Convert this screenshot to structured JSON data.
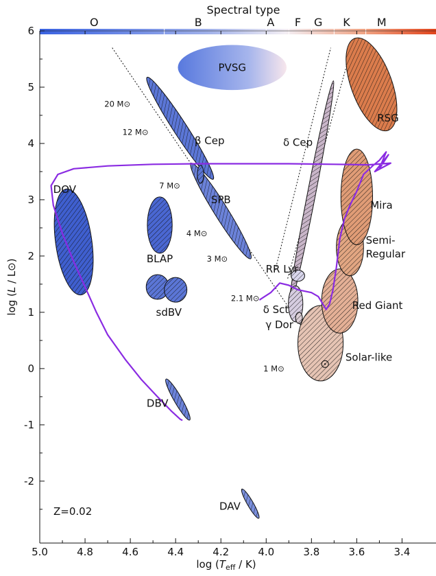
{
  "title": "Spectral type",
  "spectral_types": [
    "O",
    "B",
    "A",
    "F",
    "G",
    "K",
    "M"
  ],
  "axes": {
    "x": {
      "label": "log (T_eff / K)",
      "label_parts": {
        "prefix": "log (",
        "italic": "T",
        "sub": "eff",
        "suffix": " / K)"
      },
      "range": [
        5.0,
        3.25
      ],
      "reversed": true,
      "ticks": [
        5.0,
        4.8,
        4.6,
        4.4,
        4.2,
        4.0,
        3.8,
        3.6,
        3.4
      ],
      "tick_labels": [
        "5.0",
        "4.8",
        "4.6",
        "4.4",
        "4.2",
        "4.0",
        "3.8",
        "3.6",
        "3.4"
      ]
    },
    "y": {
      "label": "log (L / L⊙)",
      "label_parts": {
        "prefix": "log (",
        "italic": "L",
        "suffix": " / L⊙)"
      },
      "range": [
        -3.1,
        6.0
      ],
      "ticks": [
        -2,
        -1,
        0,
        1,
        2,
        3,
        4,
        5,
        6
      ],
      "tick_labels": [
        "-2",
        "-1",
        "0",
        "1",
        "2",
        "3",
        "4",
        "5",
        "6"
      ]
    }
  },
  "metallicity_label": "Z=0.02",
  "regions": [
    {
      "name": "PVSG",
      "label": "PVSG",
      "cx": 4.15,
      "cy": 5.35,
      "rx": 0.24,
      "ry": 0.4,
      "angle": 0,
      "fill": "gradient-blue",
      "hatched": false
    },
    {
      "name": "DOV",
      "label": "DOV",
      "cx": 4.85,
      "cy": 2.25,
      "rx": 0.08,
      "ry": 0.95,
      "angle": -8,
      "fill": "#3f5fcf",
      "hatched": true
    },
    {
      "name": "BLAP",
      "label": "BLAP",
      "cx": 4.47,
      "cy": 2.55,
      "rx": 0.055,
      "ry": 0.5,
      "angle": 0,
      "fill": "#4a67d2",
      "hatched": true
    },
    {
      "name": "sdBV-left",
      "label": "",
      "cx": 4.48,
      "cy": 1.45,
      "rx": 0.05,
      "ry": 0.22,
      "angle": 0,
      "fill": "#5b76d6",
      "hatched": true
    },
    {
      "name": "sdBV-right",
      "label": "",
      "cx": 4.4,
      "cy": 1.4,
      "rx": 0.05,
      "ry": 0.22,
      "angle": 0,
      "fill": "#5b76d6",
      "hatched": true
    },
    {
      "name": "beta-Cep",
      "label": "β Cep",
      "cx": 4.38,
      "cy": 4.27,
      "rx": 0.03,
      "ry": 1.08,
      "angle": -33,
      "fill": "#5b76d6",
      "hatched": true
    },
    {
      "name": "SPB",
      "label": "SPB",
      "cx": 4.2,
      "cy": 2.8,
      "rx": 0.03,
      "ry": 1.0,
      "angle": -32,
      "fill": "#6b82d9",
      "hatched": true
    },
    {
      "name": "beta-Cep-SPB-overlap",
      "label": "",
      "cx": 4.29,
      "cy": 3.45,
      "rx": 0.014,
      "ry": 0.16,
      "angle": 0,
      "fill": "#5b76d6",
      "hatched": true
    },
    {
      "name": "DBV",
      "label": "DBV",
      "cx": 4.39,
      "cy": -0.55,
      "rx": 0.017,
      "ry": 0.42,
      "angle": -30,
      "fill": "#6b82d9",
      "hatched": true
    },
    {
      "name": "DAV",
      "label": "DAV",
      "cx": 4.07,
      "cy": -2.4,
      "rx": 0.013,
      "ry": 0.3,
      "angle": -30,
      "fill": "#7a8fdc",
      "hatched": true
    },
    {
      "name": "delta-Cep",
      "label": "δ Cep",
      "cx": 3.8,
      "cy": 3.1,
      "rx": 0.018,
      "ry": 2.05,
      "angle": 11,
      "fill": "#c9b6c9",
      "hatched": true
    },
    {
      "name": "RR-Lyr",
      "label": "RR Lyr",
      "cx": 3.86,
      "cy": 1.65,
      "rx": 0.03,
      "ry": 0.1,
      "angle": 0,
      "fill": "#d8d6ec",
      "hatched": true
    },
    {
      "name": "delta-Sct",
      "label": "δ Sct",
      "cx": 3.87,
      "cy": 1.15,
      "rx": 0.032,
      "ry": 0.32,
      "angle": 0,
      "fill": "#d6cde0",
      "hatched": true
    },
    {
      "name": "gamma-Dor",
      "label": "γ Dor",
      "cx": 3.855,
      "cy": 0.9,
      "rx": 0.015,
      "ry": 0.1,
      "angle": 0,
      "fill": "#dccfd6",
      "hatched": true
    },
    {
      "name": "Solar-like",
      "label": "Solar-like",
      "cx": 3.76,
      "cy": 0.45,
      "rx": 0.1,
      "ry": 0.67,
      "angle": 0,
      "fill": "#e6c4b4",
      "hatched": true
    },
    {
      "name": "Red-Giant",
      "label": "Red Giant",
      "cx": 3.675,
      "cy": 1.2,
      "rx": 0.08,
      "ry": 0.57,
      "angle": 0,
      "fill": "#e4b096",
      "hatched": true
    },
    {
      "name": "Semi-Regular",
      "label": "Semi-\nRegular",
      "cx": 3.63,
      "cy": 2.15,
      "rx": 0.06,
      "ry": 0.5,
      "angle": 0,
      "fill": "#e2a682",
      "hatched": true
    },
    {
      "name": "Mira",
      "label": "Mira",
      "cx": 3.6,
      "cy": 3.05,
      "rx": 0.07,
      "ry": 0.85,
      "angle": 0,
      "fill": "#e09c76",
      "hatched": true
    },
    {
      "name": "RSG",
      "label": "RSG",
      "cx": 3.535,
      "cy": 5.05,
      "rx": 0.09,
      "ry": 0.87,
      "angle": -20,
      "fill": "#db7c4c",
      "hatched": true
    }
  ],
  "mass_labels": [
    {
      "name": "20-msun",
      "label": "20 M⊙",
      "x": 4.6,
      "y": 4.7
    },
    {
      "name": "12-msun",
      "label": "12 M⊙",
      "x": 4.52,
      "y": 4.2
    },
    {
      "name": "7-msun",
      "label": "7 M⊙",
      "x": 4.38,
      "y": 3.25
    },
    {
      "name": "4-msun",
      "label": "4 M⊙",
      "x": 4.26,
      "y": 2.4
    },
    {
      "name": "3-msun",
      "label": "3 M⊙",
      "x": 4.17,
      "y": 1.95
    },
    {
      "name": "2.1-msun",
      "label": "2.1 M⊙",
      "x": 4.03,
      "y": 1.25,
      "color": "#8a2be2"
    },
    {
      "name": "1-msun",
      "label": "1 M⊙",
      "x": 3.92,
      "y": 0.0
    }
  ],
  "colors": {
    "track": "#8a2be2",
    "outline": "#111111",
    "spectral_bar_start": "#3a62e0",
    "spectral_bar_mid": "#f3eef4",
    "spectral_bar_end": "#e0441c"
  }
}
